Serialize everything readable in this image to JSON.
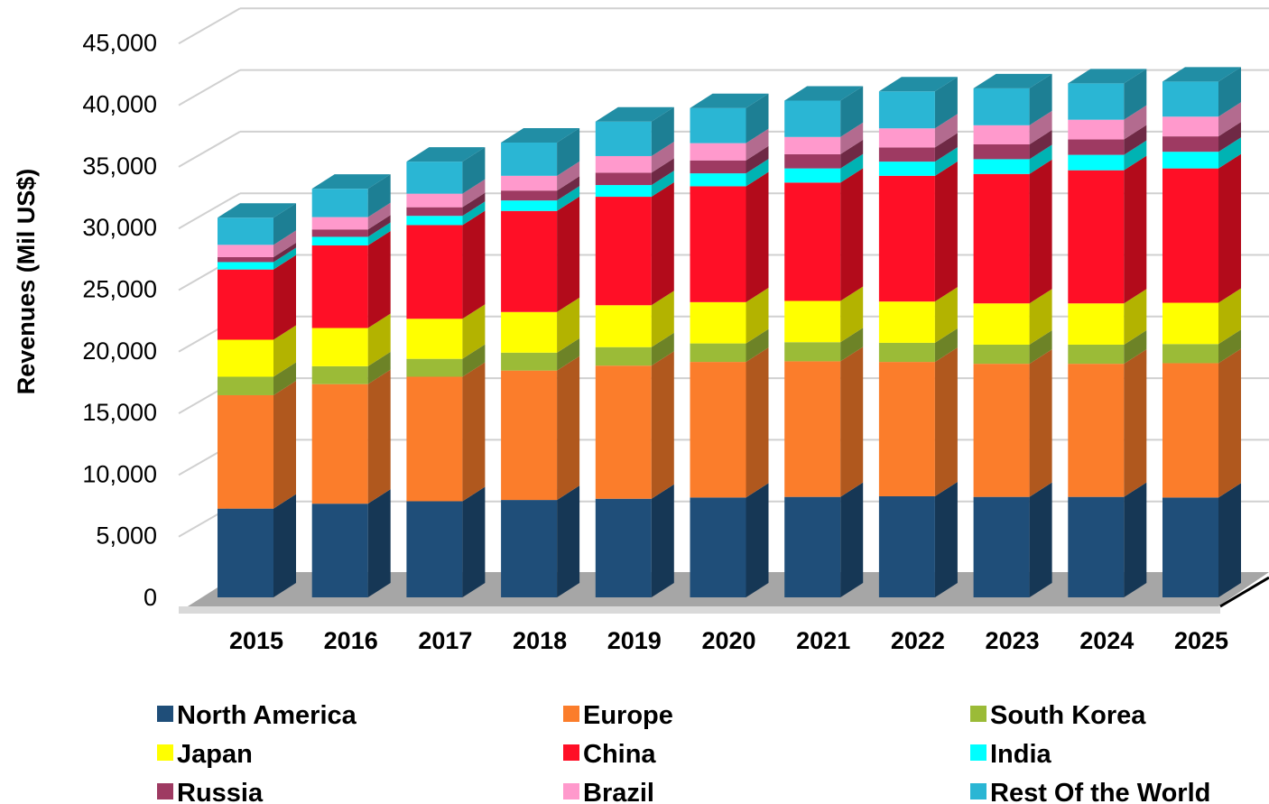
{
  "chart_data": {
    "type": "bar",
    "stacked": true,
    "three_d": true,
    "title": "",
    "xlabel": "",
    "ylabel": "Revenues (Mil US$)",
    "ylim": [
      0,
      45000
    ],
    "yticks": [
      0,
      5000,
      10000,
      15000,
      20000,
      25000,
      30000,
      35000,
      40000,
      45000
    ],
    "ytick_labels": [
      "0",
      "5,000",
      "10,000",
      "15,000",
      "20,000",
      "25,000",
      "30,000",
      "35,000",
      "40,000",
      "45,000"
    ],
    "grid": true,
    "legend_position": "bottom",
    "categories": [
      "2015",
      "2016",
      "2017",
      "2018",
      "2019",
      "2020",
      "2021",
      "2022",
      "2023",
      "2024",
      "2025"
    ],
    "series": [
      {
        "name": "North America",
        "color": "#1f4e79",
        "values": [
          7200,
          7600,
          7800,
          7900,
          8000,
          8100,
          8150,
          8200,
          8150,
          8150,
          8100
        ]
      },
      {
        "name": "Europe",
        "color": "#fb7d2b",
        "values": [
          9200,
          9700,
          10100,
          10500,
          10800,
          11000,
          11000,
          10900,
          10800,
          10800,
          10900
        ]
      },
      {
        "name": "South Korea",
        "color": "#9bbb37",
        "values": [
          1500,
          1450,
          1450,
          1450,
          1500,
          1500,
          1550,
          1550,
          1550,
          1550,
          1550
        ]
      },
      {
        "name": "Japan",
        "color": "#ffff00",
        "values": [
          3000,
          3100,
          3250,
          3300,
          3400,
          3350,
          3350,
          3350,
          3350,
          3350,
          3350
        ]
      },
      {
        "name": "China",
        "color": "#ff0f26",
        "values": [
          5700,
          6700,
          7600,
          8200,
          8800,
          9400,
          9600,
          10200,
          10500,
          10800,
          10900
        ]
      },
      {
        "name": "India",
        "color": "#00ffff",
        "values": [
          600,
          700,
          750,
          850,
          950,
          1050,
          1150,
          1150,
          1200,
          1250,
          1350
        ]
      },
      {
        "name": "Russia",
        "color": "#9e3a62",
        "values": [
          400,
          600,
          700,
          800,
          1000,
          1050,
          1150,
          1150,
          1200,
          1250,
          1250
        ]
      },
      {
        "name": "Brazil",
        "color": "#ff99cc",
        "values": [
          1000,
          1000,
          1100,
          1200,
          1350,
          1400,
          1400,
          1550,
          1550,
          1600,
          1600
        ]
      },
      {
        "name": "Rest Of the World",
        "color": "#2ab6d4",
        "values": [
          2200,
          2300,
          2600,
          2700,
          2800,
          2850,
          2950,
          3000,
          3000,
          2950,
          2850
        ]
      }
    ]
  }
}
